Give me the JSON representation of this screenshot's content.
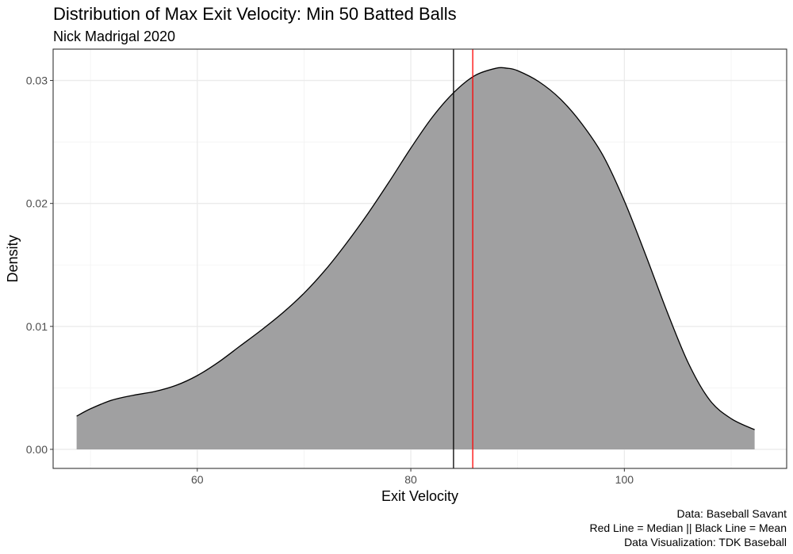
{
  "chart_data": {
    "type": "area",
    "title": "Distribution of Max Exit Velocity: Min 50 Batted Balls",
    "subtitle": "Nick Madrigal 2020",
    "xlabel": "Exit Velocity",
    "ylabel": "Density",
    "xlim": [
      46.5,
      115.2
    ],
    "ylim": [
      -0.00155,
      0.03255
    ],
    "x_ticks": [
      60,
      80,
      100
    ],
    "x_tick_labels": [
      "60",
      "80",
      "100"
    ],
    "y_ticks": [
      0.0,
      0.01,
      0.02,
      0.03
    ],
    "y_tick_labels": [
      "0.00",
      "0.01",
      "0.02",
      "0.03"
    ],
    "grid": true,
    "fill_color": "#a0a0a1",
    "density_points": [
      [
        48.7,
        0.0027
      ],
      [
        50,
        0.0033
      ],
      [
        52,
        0.004
      ],
      [
        54,
        0.0044
      ],
      [
        56,
        0.0047
      ],
      [
        58,
        0.0052
      ],
      [
        60,
        0.006
      ],
      [
        62,
        0.0071
      ],
      [
        64,
        0.0084
      ],
      [
        66,
        0.0097
      ],
      [
        68,
        0.0111
      ],
      [
        70,
        0.0127
      ],
      [
        72,
        0.0146
      ],
      [
        74,
        0.0168
      ],
      [
        76,
        0.0192
      ],
      [
        78,
        0.0218
      ],
      [
        80,
        0.0245
      ],
      [
        82,
        0.027
      ],
      [
        84,
        0.029
      ],
      [
        86,
        0.0304
      ],
      [
        88,
        0.031
      ],
      [
        89,
        0.031
      ],
      [
        90,
        0.0308
      ],
      [
        92,
        0.0299
      ],
      [
        94,
        0.0285
      ],
      [
        96,
        0.0265
      ],
      [
        98,
        0.0239
      ],
      [
        100,
        0.0202
      ],
      [
        102,
        0.0158
      ],
      [
        104,
        0.0112
      ],
      [
        106,
        0.007
      ],
      [
        108,
        0.004
      ],
      [
        110,
        0.0025
      ],
      [
        112.2,
        0.0016
      ]
    ],
    "reference_lines": [
      {
        "name": "Mean",
        "x": 84.0,
        "color": "#000000"
      },
      {
        "name": "Median",
        "x": 85.8,
        "color": "#ff0000"
      }
    ],
    "caption": [
      "Data: Baseball Savant",
      "Red Line = Median || Black Line = Mean",
      "Data Visualization: TDK Baseball"
    ]
  }
}
